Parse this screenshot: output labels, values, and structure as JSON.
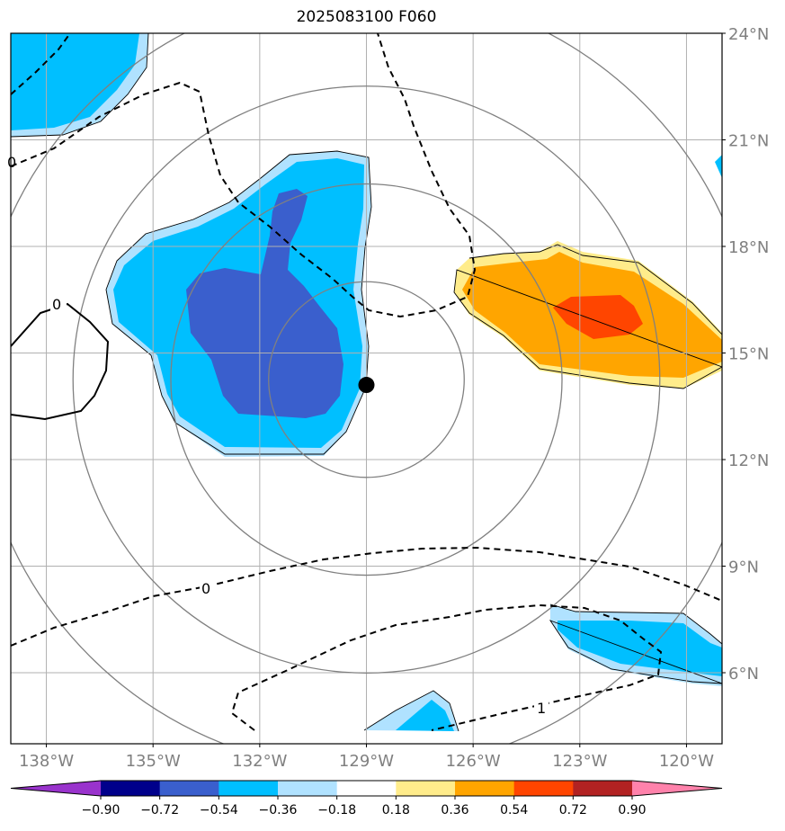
{
  "title": "2025083100 F060",
  "map": {
    "lon_range": [
      -139,
      -119
    ],
    "lat_range": [
      4.0,
      24.0
    ],
    "lon_ticks": [
      {
        "value": -138,
        "label": "138°W"
      },
      {
        "value": -135,
        "label": "135°W"
      },
      {
        "value": -132,
        "label": "132°W"
      },
      {
        "value": -129,
        "label": "129°W"
      },
      {
        "value": -126,
        "label": "126°W"
      },
      {
        "value": -123,
        "label": "123°W"
      },
      {
        "value": -120,
        "label": "120°W"
      }
    ],
    "lat_ticks": [
      {
        "value": 24,
        "label": "24°N"
      },
      {
        "value": 21,
        "label": "21°N"
      },
      {
        "value": 18,
        "label": "18°N"
      },
      {
        "value": 15,
        "label": "15°N"
      },
      {
        "value": 12,
        "label": "12°N"
      },
      {
        "value": 9,
        "label": "9°N"
      },
      {
        "value": 6,
        "label": "6°N"
      }
    ],
    "grid": true,
    "storm_center": {
      "lon": -129.0,
      "lat": 14.1
    },
    "range_rings_deg": [
      2.75,
      5.5,
      8.25,
      11.0
    ],
    "contour_labels": [
      "0",
      "0",
      "0",
      "1"
    ]
  },
  "colorbar": {
    "ticks": [
      "−0.90",
      "−0.72",
      "−0.54",
      "−0.36",
      "−0.18",
      "0.18",
      "0.36",
      "0.54",
      "0.72",
      "0.90"
    ],
    "colors": [
      "#9933cc",
      "#00008b",
      "#3a5fcd",
      "#00bfff",
      "#b0e2ff",
      "#ffffff",
      "#ffec8b",
      "#ffa500",
      "#ff4500",
      "#b22222",
      "#ff82ab"
    ]
  }
}
